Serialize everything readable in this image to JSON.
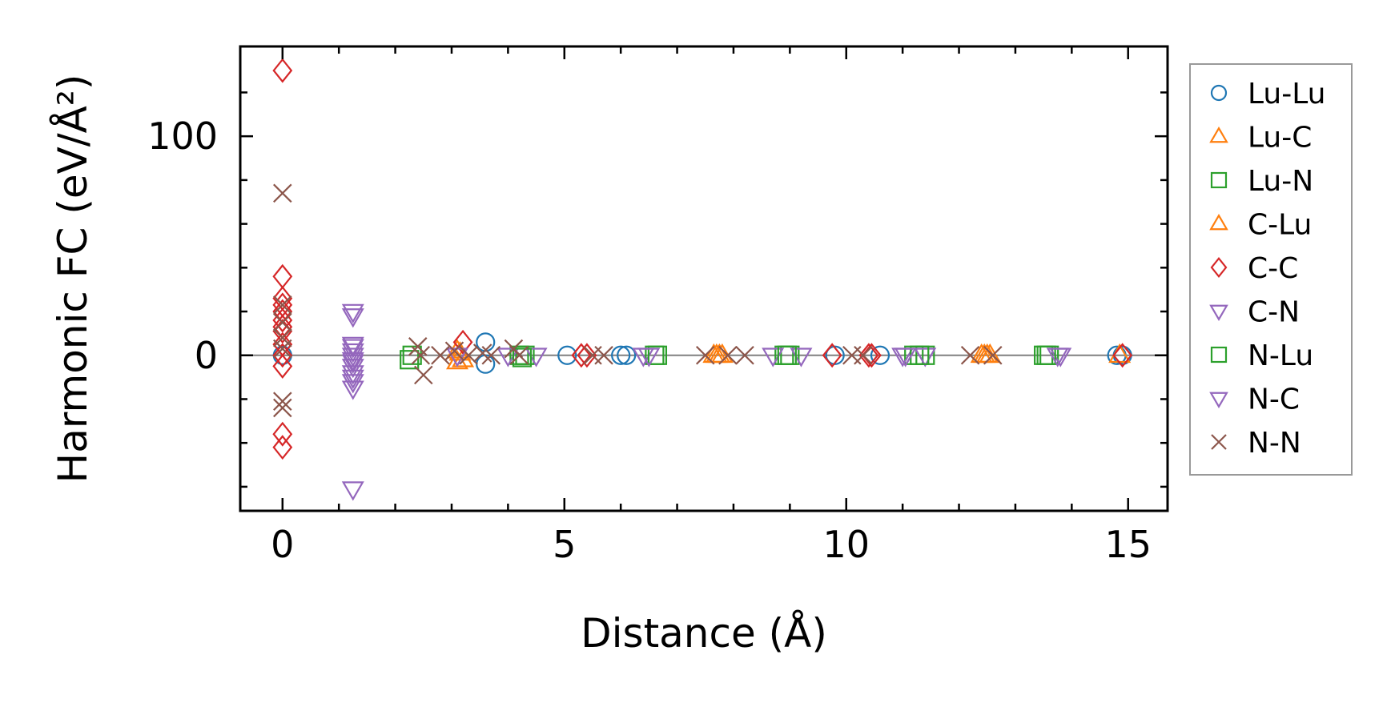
{
  "chart_data": {
    "type": "scatter",
    "xlabel": "Distance (Å)",
    "ylabel": "Harmonic FC (eV/Å²)",
    "xlim": [
      -0.75,
      15.7
    ],
    "ylim": [
      -71,
      141
    ],
    "xticks": [
      0,
      5,
      10,
      15
    ],
    "yticks": [
      0,
      100
    ],
    "grid": false,
    "zero_line": true,
    "legend_position": "outside-right",
    "series": [
      {
        "name": "Lu-Lu",
        "marker": "circle",
        "color": "#1f77b4",
        "x": [
          0,
          3.6,
          3.6,
          5.05,
          6.0,
          6.1,
          9.8,
          10.6,
          14.8,
          14.9
        ],
        "y": [
          0,
          6,
          -4,
          0,
          0,
          0,
          0,
          0,
          0,
          0
        ]
      },
      {
        "name": "Lu-C",
        "marker": "triangle-up",
        "color": "#ff7f0e",
        "x": [
          3.1,
          3.1,
          7.65,
          7.75,
          12.4,
          12.5,
          14.85
        ],
        "y": [
          2,
          -3,
          0,
          0,
          0,
          0,
          0
        ]
      },
      {
        "name": "Lu-N",
        "marker": "square",
        "color": "#2ca02c",
        "x": [
          2.3,
          4.2,
          4.3,
          6.6,
          8.9,
          9.0,
          11.2,
          11.4,
          13.5,
          13.6
        ],
        "y": [
          0,
          0,
          0,
          0,
          0,
          0,
          0,
          0,
          0,
          0
        ]
      },
      {
        "name": "C-Lu",
        "marker": "triangle-up",
        "color": "#ff7f0e",
        "x": [
          3.15,
          3.2,
          7.7,
          7.8,
          12.45,
          12.55
        ],
        "y": [
          1,
          -2,
          0,
          0,
          0,
          0
        ]
      },
      {
        "name": "C-C",
        "marker": "diamond",
        "color": "#d62728",
        "x": [
          0,
          0,
          0,
          0,
          0,
          0,
          0,
          0,
          0,
          0,
          0,
          0,
          0,
          3.2,
          5.3,
          5.4,
          9.75,
          10.4,
          10.45,
          14.9
        ],
        "y": [
          130,
          36,
          26,
          23,
          20,
          16,
          11,
          5,
          0,
          -5,
          -36,
          -42,
          13,
          6,
          0,
          0,
          0,
          0,
          0,
          0
        ]
      },
      {
        "name": "C-N",
        "marker": "triangle-down",
        "color": "#9467bd",
        "x": [
          1.25,
          1.25,
          1.25,
          1.25,
          1.25,
          1.25,
          1.25,
          1.25,
          1.25,
          1.25,
          1.25,
          3.1,
          4.0,
          4.5,
          6.4,
          8.7,
          9.2,
          11.0,
          11.4,
          13.8
        ],
        "y": [
          20,
          18,
          5,
          2,
          0,
          -2,
          -5,
          -8,
          -10,
          -15,
          -61,
          0,
          0,
          0,
          0,
          0,
          0,
          0,
          0,
          0
        ]
      },
      {
        "name": "N-Lu",
        "marker": "square",
        "color": "#2ca02c",
        "x": [
          2.25,
          4.25,
          6.65,
          8.95,
          11.3,
          13.55
        ],
        "y": [
          -2,
          -1,
          0,
          0,
          0,
          0
        ]
      },
      {
        "name": "N-C",
        "marker": "triangle-down",
        "color": "#9467bd",
        "x": [
          1.25,
          1.25,
          1.25,
          6.5,
          11.05,
          13.75
        ],
        "y": [
          4,
          -3,
          -12,
          0,
          0,
          0
        ]
      },
      {
        "name": "N-N",
        "marker": "x",
        "color": "#8c564b",
        "x": [
          0,
          0,
          0,
          0,
          0,
          0,
          0,
          2.4,
          2.45,
          2.5,
          2.8,
          3.05,
          3.3,
          3.55,
          3.7,
          4.1,
          4.2,
          5.5,
          5.7,
          7.5,
          7.9,
          8.2,
          10.1,
          10.3,
          12.2,
          12.6
        ],
        "y": [
          74,
          23,
          15,
          8,
          3,
          -21,
          -24,
          4,
          0,
          -9,
          0,
          2,
          0,
          1,
          0,
          3,
          0,
          0,
          0,
          0,
          0,
          0,
          0,
          0,
          0,
          0
        ]
      }
    ]
  }
}
